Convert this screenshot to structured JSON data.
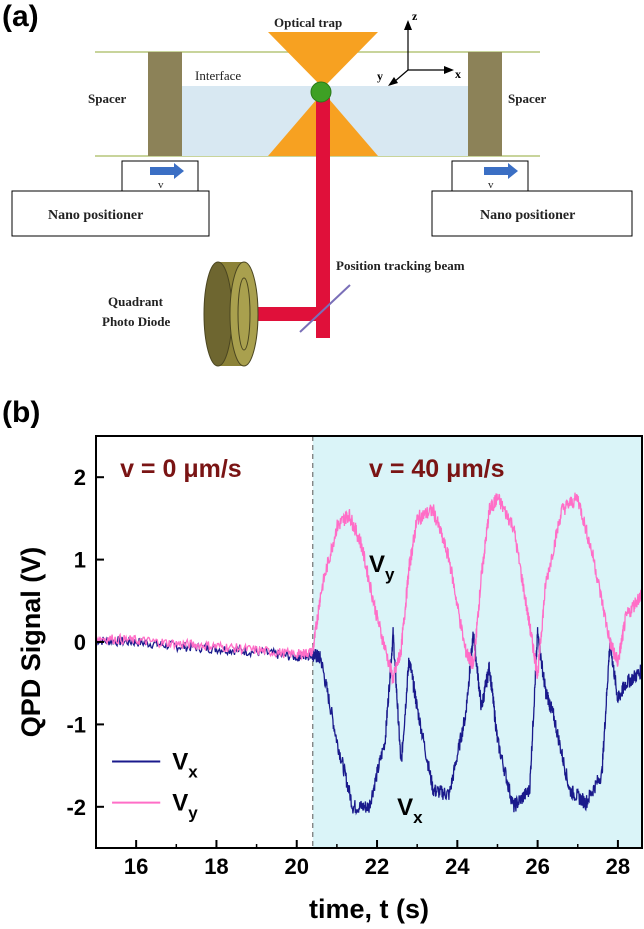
{
  "panel_a": {
    "label": "(a)",
    "optical_trap": "Optical trap",
    "interface": "Interface",
    "spacer_left": "Spacer",
    "spacer_right": "Spacer",
    "velocity_symbol": "v",
    "nano_left": "Nano positioner",
    "nano_right": "Nano positioner",
    "tracking_beam": "Position tracking beam",
    "qpd_line1": "Quadrant",
    "qpd_line2": "Photo Diode",
    "axis_z": "z",
    "axis_y": "y",
    "axis_x": "x"
  },
  "panel_b": {
    "label": "(b)"
  },
  "chart_data": {
    "type": "line",
    "xlabel": "time, t (s)",
    "ylabel": "QPD Signal (V)",
    "xlim": [
      15,
      28.6
    ],
    "ylim": [
      -2.5,
      2.5
    ],
    "xticks": [
      16,
      18,
      20,
      22,
      24,
      26,
      28
    ],
    "yticks": [
      -2,
      -1,
      0,
      1,
      2
    ],
    "vline_x": 20.4,
    "shaded_from_x": 20.4,
    "annotation_left": "v = 0 μm/s",
    "annotation_right": "v = 40 μm/s",
    "label_vy_main": "V",
    "label_vy_sub": "y",
    "label_vx_main": "V",
    "label_vx_sub": "x",
    "legend": [
      {
        "main": "V",
        "sub": "x",
        "color": "#1a1a8c"
      },
      {
        "main": "V",
        "sub": "y",
        "color": "#ff6ec7"
      }
    ],
    "legend_position": "lower-left",
    "series": [
      {
        "name": "Vx",
        "color": "#1a1a8c",
        "x": [
          15.0,
          16.0,
          17.0,
          18.0,
          19.0,
          20.0,
          20.4,
          20.6,
          21.0,
          21.4,
          21.8,
          22.2,
          22.4,
          22.6,
          22.8,
          23.0,
          23.4,
          23.8,
          24.2,
          24.4,
          24.6,
          24.8,
          25.0,
          25.4,
          25.8,
          26.0,
          26.2,
          26.4,
          26.8,
          27.2,
          27.6,
          27.8,
          28.0,
          28.2,
          28.6
        ],
        "y": [
          0.02,
          0.0,
          -0.05,
          -0.08,
          -0.12,
          -0.18,
          -0.15,
          -0.2,
          -1.2,
          -2.0,
          -2.0,
          -1.2,
          0.1,
          -1.5,
          -0.2,
          -0.8,
          -1.8,
          -1.85,
          -0.9,
          0.1,
          -0.8,
          -0.3,
          -1.2,
          -2.0,
          -1.8,
          0.1,
          -0.6,
          -0.9,
          -1.8,
          -1.95,
          -1.6,
          0.0,
          -0.7,
          -0.5,
          -0.35
        ]
      },
      {
        "name": "Vy",
        "color": "#ff6ec7",
        "x": [
          15.0,
          16.0,
          17.0,
          18.0,
          19.0,
          20.0,
          20.4,
          20.6,
          21.0,
          21.3,
          21.6,
          22.0,
          22.4,
          22.6,
          22.8,
          23.0,
          23.4,
          23.8,
          24.2,
          24.4,
          24.6,
          24.8,
          25.0,
          25.4,
          25.8,
          26.0,
          26.2,
          26.6,
          27.0,
          27.4,
          27.8,
          28.0,
          28.2,
          28.6
        ],
        "y": [
          0.05,
          0.02,
          -0.02,
          -0.05,
          -0.1,
          -0.15,
          -0.12,
          0.6,
          1.4,
          1.55,
          1.2,
          0.3,
          -0.45,
          -0.1,
          0.9,
          1.5,
          1.6,
          1.0,
          -0.1,
          -0.3,
          0.8,
          1.6,
          1.75,
          1.4,
          0.2,
          -0.4,
          0.7,
          1.6,
          1.75,
          1.0,
          0.0,
          -0.25,
          0.3,
          0.6
        ]
      }
    ]
  }
}
